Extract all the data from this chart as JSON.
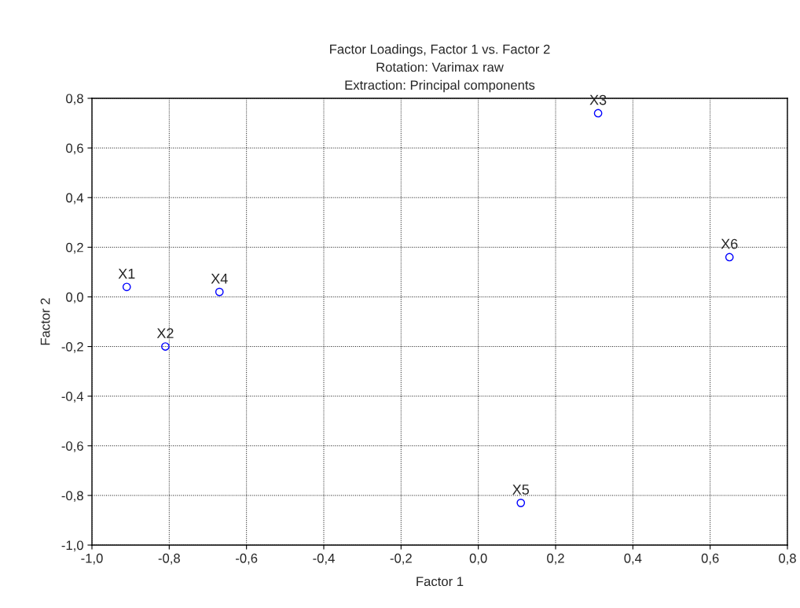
{
  "chart_data": {
    "type": "scatter",
    "title": "Factor Loadings, Factor 1 vs. Factor 2\nRotation: Varimax raw\nExtraction: Principal components",
    "xlabel": "Factor 1",
    "ylabel": "Factor 2",
    "x": [
      -0.91,
      -0.81,
      0.31,
      -0.67,
      0.11,
      0.65
    ],
    "series": [
      {
        "color": "#0000ff",
        "values": [
          0.04,
          -0.2,
          0.74,
          0.02,
          -0.83,
          0.16
        ]
      }
    ],
    "marker": "circle",
    "grid": true,
    "line_style": "dotted",
    "annotations": [
      {
        "text": "X1",
        "x": -0.91,
        "y": 0.04
      },
      {
        "text": "X2",
        "x": -0.81,
        "y": -0.2
      },
      {
        "text": "X3",
        "x": 0.31,
        "y": 0.74
      },
      {
        "text": "X4",
        "x": -0.67,
        "y": 0.02
      },
      {
        "text": "X5",
        "x": 0.11,
        "y": -0.83
      },
      {
        "text": "X6",
        "x": 0.65,
        "y": 0.16
      }
    ],
    "xlim": [
      -1.0,
      0.8
    ],
    "ylim": [
      -1.0,
      0.8
    ],
    "xticks": [
      {
        "value": -1.0,
        "label": "-1,0"
      },
      {
        "value": -0.8,
        "label": "-0,8"
      },
      {
        "value": -0.6,
        "label": "-0,6"
      },
      {
        "value": -0.4,
        "label": "-0,4"
      },
      {
        "value": -0.2,
        "label": "-0,2"
      },
      {
        "value": 0.0,
        "label": "0,0"
      },
      {
        "value": 0.2,
        "label": "0,2"
      },
      {
        "value": 0.4,
        "label": "0,4"
      },
      {
        "value": 0.6,
        "label": "0,6"
      },
      {
        "value": 0.8,
        "label": "0,8"
      }
    ],
    "yticks": [
      {
        "value": -1.0,
        "label": "-1,0"
      },
      {
        "value": -0.8,
        "label": "-0,8"
      },
      {
        "value": -0.6,
        "label": "-0,6"
      },
      {
        "value": -0.4,
        "label": "-0,4"
      },
      {
        "value": -0.2,
        "label": "-0,2"
      },
      {
        "value": 0.0,
        "label": "0,0"
      },
      {
        "value": 0.2,
        "label": "0,2"
      },
      {
        "value": 0.4,
        "label": "0,4"
      },
      {
        "value": 0.6,
        "label": "0,6"
      },
      {
        "value": 0.8,
        "label": "0,8"
      }
    ]
  }
}
